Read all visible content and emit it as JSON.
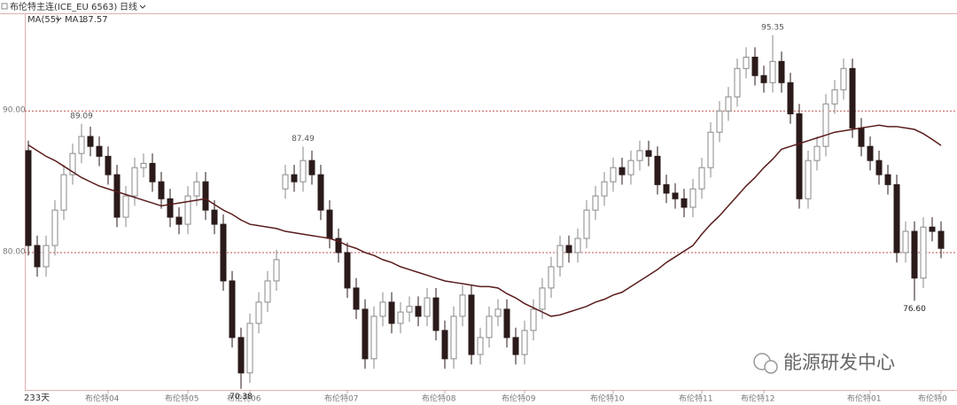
{
  "chart_data": {
    "type": "candlestick",
    "title": "布伦特主连(ICE_EU 6563)",
    "period": "日线",
    "indicator": "MA(55)",
    "bar_count_label": "233天",
    "watermark": "能源研发中心",
    "categories": [
      null,
      null,
      null,
      null,
      null,
      null,
      null,
      null,
      null,
      "布伦特04",
      null,
      null,
      null,
      null,
      null,
      null,
      null,
      null,
      "布伦特05",
      null,
      null,
      null,
      null,
      null,
      null,
      "布伦特06",
      null,
      null,
      null,
      null,
      null,
      null,
      null,
      null,
      null,
      null,
      "布伦特07",
      null,
      null,
      null,
      null,
      null,
      null,
      null,
      null,
      null,
      null,
      "布伦特08",
      null,
      null,
      null,
      null,
      null,
      null,
      null,
      null,
      "布伦特09",
      null,
      null,
      null,
      null,
      null,
      null,
      null,
      null,
      null,
      "布伦特10",
      null,
      null,
      null,
      null,
      null,
      null,
      null,
      null,
      null,
      "布伦特11",
      null,
      null,
      null,
      null,
      null,
      null,
      "布伦特12",
      null,
      null,
      null,
      null,
      null,
      null,
      null,
      null,
      null,
      null,
      null,
      "布伦特01",
      null,
      null,
      null,
      null,
      null,
      null,
      null,
      "布伦特0"
    ],
    "open": [
      87.2,
      80.5,
      79.0,
      80.5,
      83.0,
      85.5,
      87.0,
      88.2,
      87.5,
      86.8,
      85.5,
      82.5,
      84.0,
      86.0,
      86.3,
      85.0,
      83.8,
      82.5,
      82.0,
      84.0,
      85.0,
      83.0,
      82.0,
      78.0,
      74.0,
      71.5,
      75.0,
      76.5,
      78.0,
      84.5,
      85.5,
      85.0,
      86.5,
      85.5,
      83.0,
      81.0,
      80.0,
      77.5,
      76.0,
      72.5,
      75.5,
      76.5,
      75.0,
      75.8,
      76.2,
      75.5,
      76.8,
      74.5,
      72.5,
      75.5,
      77.0,
      72.8,
      74.0,
      75.5,
      76.0,
      74.0,
      72.8,
      74.5,
      76.0,
      77.5,
      79.0,
      80.5,
      80.0,
      81.0,
      83.0,
      84.0,
      85.0,
      86.0,
      85.5,
      86.5,
      87.2,
      86.8,
      84.8,
      84.2,
      83.8,
      83.2,
      84.5,
      86.0,
      88.5,
      90.0,
      91.0,
      93.0,
      93.8,
      92.5,
      92.0,
      93.5,
      92.0,
      89.8,
      83.8,
      86.5,
      87.5,
      90.5,
      91.5,
      93.0,
      88.8,
      87.5,
      86.5,
      85.5,
      84.8,
      80.0,
      81.5,
      78.2,
      81.8,
      81.5
    ],
    "high": [
      87.9,
      81.2,
      81.2,
      83.7,
      86.2,
      87.7,
      89.09,
      88.9,
      88.2,
      87.5,
      86.2,
      84.7,
      86.7,
      87.0,
      87.0,
      85.7,
      84.5,
      83.2,
      84.7,
      85.7,
      85.7,
      83.7,
      82.7,
      78.7,
      74.7,
      75.7,
      77.2,
      78.7,
      80.2,
      86.2,
      86.2,
      87.49,
      87.2,
      86.2,
      83.7,
      81.7,
      80.7,
      78.2,
      76.7,
      76.2,
      77.2,
      77.2,
      76.5,
      76.9,
      76.9,
      77.5,
      77.5,
      75.2,
      76.2,
      77.7,
      77.7,
      74.7,
      76.2,
      76.7,
      76.7,
      74.7,
      75.2,
      76.7,
      78.2,
      79.7,
      81.2,
      81.2,
      81.7,
      83.7,
      84.7,
      85.7,
      86.7,
      86.7,
      87.2,
      87.9,
      87.9,
      87.5,
      85.5,
      84.9,
      84.5,
      85.2,
      86.7,
      89.2,
      90.7,
      91.7,
      93.7,
      94.5,
      94.5,
      93.2,
      95.35,
      94.2,
      92.7,
      90.5,
      87.2,
      88.2,
      91.2,
      92.2,
      93.7,
      93.7,
      89.5,
      88.2,
      87.2,
      86.2,
      85.5,
      82.2,
      82.2,
      82.5,
      82.5,
      82.2
    ],
    "low": [
      79.8,
      78.3,
      78.3,
      79.8,
      82.3,
      84.8,
      86.3,
      86.8,
      86.1,
      84.8,
      81.8,
      81.8,
      83.3,
      85.3,
      84.3,
      83.1,
      81.8,
      81.3,
      81.3,
      83.3,
      82.3,
      81.3,
      77.3,
      73.3,
      70.38,
      70.8,
      74.3,
      75.8,
      77.3,
      83.8,
      84.3,
      84.3,
      84.8,
      82.3,
      80.3,
      79.3,
      76.8,
      75.3,
      71.8,
      71.8,
      74.8,
      74.3,
      74.3,
      75.1,
      74.8,
      74.8,
      73.8,
      71.8,
      71.8,
      74.8,
      72.1,
      72.1,
      73.3,
      74.8,
      73.3,
      72.1,
      72.1,
      73.8,
      75.3,
      76.8,
      78.3,
      79.3,
      79.3,
      80.3,
      82.3,
      83.3,
      84.3,
      84.8,
      84.8,
      85.8,
      86.1,
      84.1,
      83.5,
      83.1,
      82.5,
      82.5,
      83.8,
      85.3,
      87.8,
      89.3,
      90.3,
      92.3,
      91.8,
      91.3,
      91.3,
      91.3,
      89.1,
      83.1,
      83.1,
      85.8,
      86.8,
      89.8,
      90.8,
      88.1,
      86.8,
      85.8,
      84.8,
      84.1,
      79.3,
      79.3,
      76.6,
      77.5,
      80.8,
      79.6
    ],
    "close": [
      80.5,
      79.0,
      80.5,
      83.0,
      85.5,
      87.0,
      88.2,
      87.5,
      86.8,
      85.5,
      82.5,
      84.0,
      86.0,
      86.3,
      85.0,
      83.8,
      82.5,
      82.0,
      84.0,
      85.0,
      83.0,
      82.0,
      78.0,
      74.0,
      71.5,
      75.0,
      76.5,
      78.0,
      79.5,
      85.5,
      85.0,
      86.5,
      85.5,
      83.0,
      81.0,
      80.0,
      77.5,
      76.0,
      72.5,
      75.5,
      76.5,
      75.0,
      75.8,
      76.2,
      75.5,
      76.8,
      74.5,
      72.5,
      75.5,
      77.0,
      72.8,
      74.0,
      75.5,
      76.0,
      74.0,
      72.8,
      74.5,
      76.0,
      77.5,
      79.0,
      80.5,
      80.0,
      81.0,
      83.0,
      84.0,
      85.0,
      86.0,
      85.5,
      86.5,
      87.2,
      86.8,
      84.8,
      84.2,
      83.8,
      83.2,
      84.5,
      86.0,
      88.5,
      90.0,
      91.0,
      93.0,
      93.8,
      92.5,
      92.0,
      93.5,
      92.0,
      89.8,
      83.8,
      86.5,
      87.5,
      90.5,
      91.5,
      93.0,
      88.8,
      87.5,
      86.5,
      85.5,
      84.8,
      80.0,
      81.5,
      78.2,
      81.8,
      81.5,
      80.3
    ],
    "high_labels": [
      null,
      null,
      null,
      null,
      null,
      null,
      "89.09",
      null,
      null,
      null,
      null,
      null,
      null,
      null,
      null,
      null,
      null,
      null,
      null,
      null,
      null,
      null,
      null,
      null,
      null,
      null,
      null,
      null,
      null,
      null,
      null,
      "87.49",
      null,
      null,
      null,
      null,
      null,
      null,
      null,
      null,
      null,
      null,
      null,
      null,
      null,
      null,
      null,
      null,
      null,
      null,
      null,
      null,
      null,
      null,
      null,
      null,
      null,
      null,
      null,
      null,
      null,
      null,
      null,
      null,
      null,
      null,
      null,
      null,
      null,
      null,
      null,
      null,
      null,
      null,
      null,
      null,
      null,
      null,
      null,
      null,
      null,
      null,
      null,
      null,
      "95.35",
      null,
      null,
      null,
      null,
      null,
      null,
      null,
      null,
      null,
      null,
      null,
      null,
      null,
      null,
      null,
      null,
      null,
      null,
      null
    ],
    "low_labels": [
      null,
      null,
      null,
      null,
      null,
      null,
      null,
      null,
      null,
      null,
      null,
      null,
      null,
      null,
      null,
      null,
      null,
      null,
      null,
      null,
      null,
      null,
      null,
      null,
      "70.38",
      null,
      null,
      null,
      null,
      null,
      null,
      null,
      null,
      null,
      null,
      null,
      null,
      null,
      null,
      null,
      null,
      null,
      null,
      null,
      null,
      null,
      null,
      null,
      null,
      null,
      null,
      null,
      null,
      null,
      null,
      null,
      null,
      null,
      null,
      null,
      null,
      null,
      null,
      null,
      null,
      null,
      null,
      null,
      null,
      null,
      null,
      null,
      null,
      null,
      null,
      null,
      null,
      null,
      null,
      null,
      null,
      null,
      null,
      null,
      null,
      null,
      null,
      null,
      null,
      null,
      null,
      null,
      null,
      null,
      null,
      null,
      null,
      null,
      null,
      null,
      "76.60",
      null,
      null,
      null
    ],
    "up_color": "#ffffff",
    "down_color": "#2b1a1a",
    "edge_color": "#8a8a8a",
    "ma": {
      "name": "MA1",
      "color": "#5a1c1c",
      "values": [
        87.6,
        87.2,
        86.8,
        86.5,
        86.1,
        85.7,
        85.3,
        85.0,
        84.7,
        84.5,
        84.3,
        84.1,
        83.9,
        83.7,
        83.5,
        83.3,
        83.4,
        83.5,
        83.6,
        83.7,
        83.8,
        83.4,
        83.0,
        82.7,
        82.3,
        82.0,
        81.9,
        81.8,
        81.7,
        81.5,
        81.4,
        81.3,
        81.2,
        81.1,
        81.0,
        80.8,
        80.5,
        80.3,
        80.0,
        79.8,
        79.5,
        79.3,
        79.0,
        78.8,
        78.6,
        78.4,
        78.2,
        78.0,
        77.9,
        77.8,
        77.7,
        77.6,
        77.6,
        77.5,
        77.1,
        76.8,
        76.4,
        76.1,
        75.8,
        75.5,
        75.6,
        75.8,
        76.0,
        76.2,
        76.5,
        76.7,
        77.0,
        77.2,
        77.6,
        78.0,
        78.4,
        78.8,
        79.3,
        79.7,
        80.1,
        80.5,
        81.3,
        82.0,
        82.6,
        83.3,
        84.0,
        84.7,
        85.3,
        86.0,
        86.6,
        87.3,
        87.5,
        87.7,
        87.9,
        88.1,
        88.3,
        88.5,
        88.6,
        88.7,
        88.8,
        88.9,
        89.0,
        88.9,
        88.9,
        88.8,
        88.7,
        88.4,
        88.0,
        87.57
      ]
    },
    "ylim": [
      70.3,
      96.9
    ],
    "yticks": [
      {
        "value": 90,
        "label": "90.00"
      },
      {
        "value": 80,
        "label": "80.00"
      }
    ],
    "grid": true,
    "grid_color": "#c0504d"
  }
}
